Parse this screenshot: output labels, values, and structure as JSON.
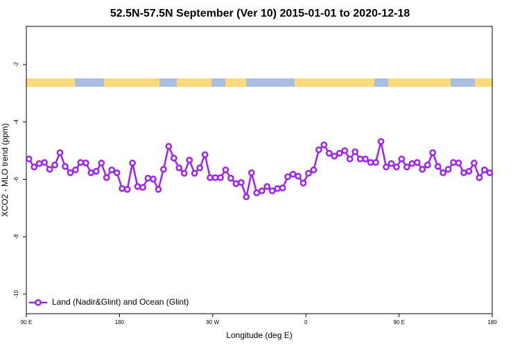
{
  "chart_data": {
    "type": "line",
    "title": "52.5N-57.5N September (Ver 10)   2015-01-01 to 2020-12-18",
    "xlabel": "Longitude (deg E)",
    "ylabel": "XCO2 - MLO trend (ppm)",
    "xlim": [
      90,
      540
    ],
    "xticks": [
      {
        "value": 90,
        "label": "90 E"
      },
      180,
      {
        "value": 270,
        "label": "90 W"
      },
      {
        "value": 360,
        "label": "0"
      },
      {
        "value": 450,
        "label": "90 E"
      },
      {
        "value": 540,
        "label": "180"
      }
    ],
    "ylim": [
      -10.68,
      -0.67
    ],
    "yticks": [
      -2,
      -4,
      -6,
      -8,
      -10
    ],
    "legend": "bottom-left",
    "x": [
      92.5,
      97.5,
      102.5,
      107.5,
      112.5,
      117.5,
      122.5,
      127.5,
      132.5,
      137.5,
      142.5,
      147.5,
      152.5,
      157.5,
      162.5,
      167.5,
      172.5,
      177.5,
      182.5,
      187.5,
      192.5,
      197.5,
      202.5,
      207.5,
      212.5,
      217.5,
      222.5,
      227.5,
      232.5,
      237.5,
      242.5,
      247.5,
      252.5,
      257.5,
      262.5,
      267.5,
      272.5,
      277.5,
      282.5,
      287.5,
      292.5,
      297.5,
      302.5,
      307.5,
      312.5,
      317.5,
      322.5,
      327.5,
      332.5,
      337.5,
      342.5,
      347.5,
      352.5,
      357.5,
      362.5,
      367.5,
      372.5,
      377.5,
      382.5,
      387.5,
      392.5,
      397.5,
      402.5,
      407.5,
      412.5,
      417.5,
      422.5,
      427.5,
      432.5,
      437.5,
      442.5,
      447.5,
      452.5,
      457.5,
      462.5,
      467.5,
      472.5,
      477.5,
      482.5,
      487.5,
      492.5,
      497.5,
      502.5,
      507.5,
      512.5,
      517.5,
      522.5,
      527.5,
      532.5,
      537.5
    ],
    "series": [
      {
        "name": "Land (Nadir&Glint) and Ocean (Glint)",
        "color": "#a020f0",
        "values": [
          -5.29,
          -5.57,
          -5.45,
          -5.41,
          -5.65,
          -5.5,
          -5.07,
          -5.55,
          -5.77,
          -5.67,
          -5.41,
          -5.43,
          -5.77,
          -5.72,
          -5.43,
          -5.94,
          -5.67,
          -5.77,
          -6.32,
          -6.35,
          -5.43,
          -6.25,
          -6.28,
          -5.96,
          -5.99,
          -6.35,
          -5.65,
          -4.85,
          -5.26,
          -5.6,
          -5.79,
          -5.33,
          -5.79,
          -5.6,
          -5.14,
          -5.94,
          -5.94,
          -5.94,
          -5.67,
          -5.96,
          -6.15,
          -6.11,
          -6.61,
          -5.77,
          -6.47,
          -6.4,
          -6.25,
          -6.4,
          -6.32,
          -6.3,
          -5.91,
          -5.82,
          -5.89,
          -6.13,
          -5.79,
          -5.67,
          -4.97,
          -4.8,
          -5.09,
          -5.19,
          -5.09,
          -5.0,
          -5.29,
          -5.04,
          -5.29,
          -5.29,
          -5.41,
          -5.41,
          -4.68,
          -5.57,
          -5.45,
          -5.57,
          -5.29,
          -5.57,
          -5.45,
          -5.41,
          -5.65,
          -5.5,
          -5.07,
          -5.55,
          -5.77,
          -5.65,
          -5.41,
          -5.43,
          -5.77,
          -5.72,
          -5.43,
          -5.94,
          -5.67,
          -5.77
        ]
      }
    ]
  }
}
